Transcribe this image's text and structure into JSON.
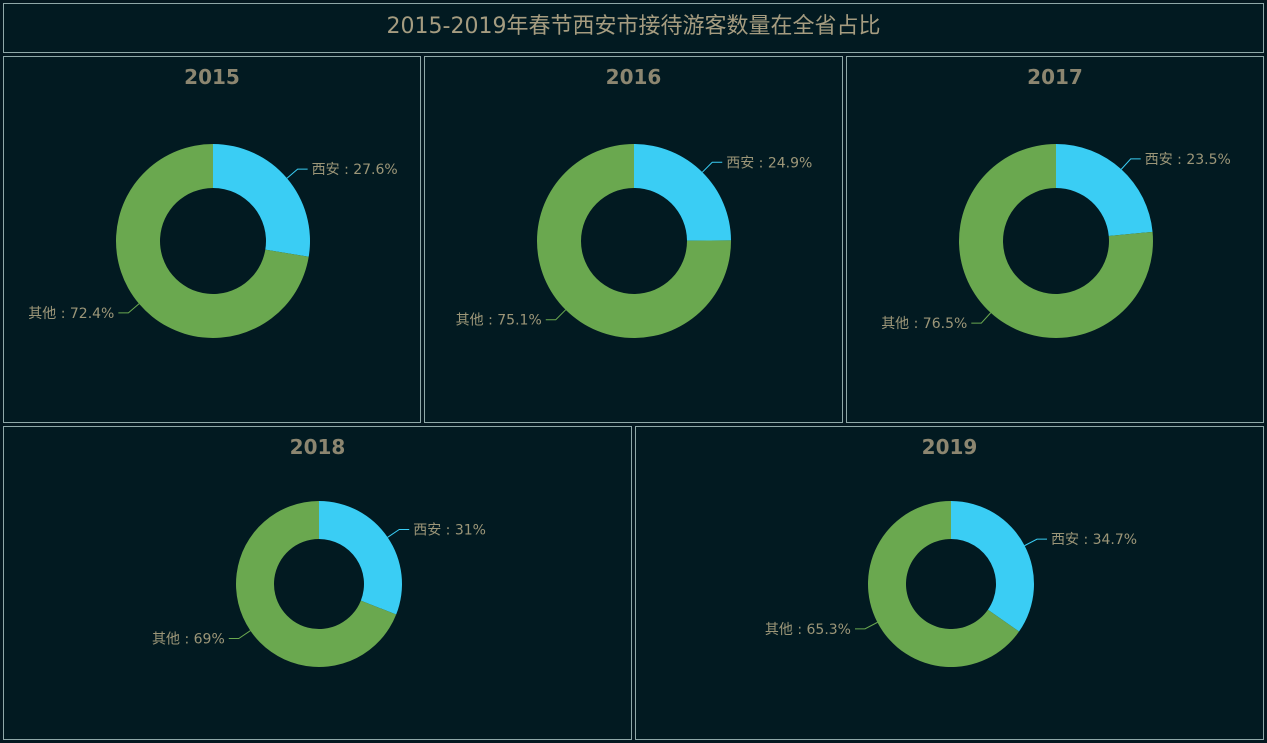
{
  "page": {
    "title": "2015-2019年春节西安市接待游客数量在全省占比"
  },
  "colors": {
    "xian": "#3acdf4",
    "other": "#6aa84f",
    "background": "#021a21",
    "border": "#8fa8a8",
    "text": "#9c9678"
  },
  "chart_data": [
    {
      "type": "pie",
      "title": "2015",
      "slices": [
        {
          "name": "西安",
          "value": 27.6,
          "label": "西安 : 27.6%"
        },
        {
          "name": "其他",
          "value": 72.4,
          "label": "其他 : 72.4%"
        }
      ]
    },
    {
      "type": "pie",
      "title": "2016",
      "slices": [
        {
          "name": "西安",
          "value": 24.9,
          "label": "西安 : 24.9%"
        },
        {
          "name": "其他",
          "value": 75.1,
          "label": "其他 : 75.1%"
        }
      ]
    },
    {
      "type": "pie",
      "title": "2017",
      "slices": [
        {
          "name": "西安",
          "value": 23.5,
          "label": "西安 : 23.5%"
        },
        {
          "name": "其他",
          "value": 76.5,
          "label": "其他 : 76.5%"
        }
      ]
    },
    {
      "type": "pie",
      "title": "2018",
      "slices": [
        {
          "name": "西安",
          "value": 31,
          "label": "西安 : 31%"
        },
        {
          "name": "其他",
          "value": 69,
          "label": "其他 : 69%"
        }
      ]
    },
    {
      "type": "pie",
      "title": "2019",
      "slices": [
        {
          "name": "西安",
          "value": 34.7,
          "label": "西安 : 34.7%"
        },
        {
          "name": "其他",
          "value": 65.3,
          "label": "其他 : 65.3%"
        }
      ]
    }
  ]
}
